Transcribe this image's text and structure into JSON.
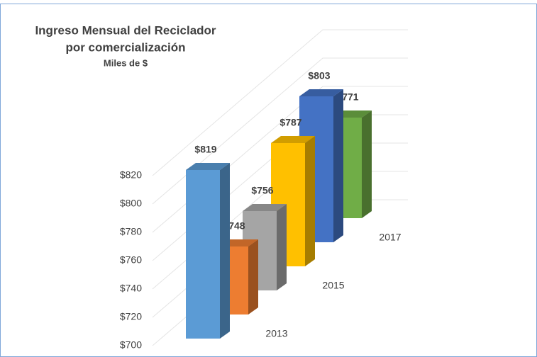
{
  "chart_data": {
    "type": "bar3d",
    "title": "Ingreso Mensual del Reciclador",
    "subtitle": "por comercialización",
    "units": "Miles de $",
    "categories": [
      null,
      "2013",
      null,
      "2015",
      null,
      "2017"
    ],
    "values": [
      819,
      748,
      756,
      787,
      803,
      771
    ],
    "value_labels": [
      "$819",
      "$748",
      "$756",
      "$787",
      "$803",
      "$771"
    ],
    "colors": [
      "#5b9bd5",
      "#ed7d31",
      "#a5a5a5",
      "#ffc000",
      "#4472c4",
      "#70ad47"
    ],
    "ylim": [
      700,
      820
    ],
    "yticks": [
      {
        "value": 700,
        "label": "$700"
      },
      {
        "value": 720,
        "label": "$720"
      },
      {
        "value": 740,
        "label": "$740"
      },
      {
        "value": 760,
        "label": "$760"
      },
      {
        "value": 780,
        "label": "$780"
      },
      {
        "value": 800,
        "label": "$800"
      },
      {
        "value": 820,
        "label": "$820"
      }
    ],
    "grid": true
  }
}
